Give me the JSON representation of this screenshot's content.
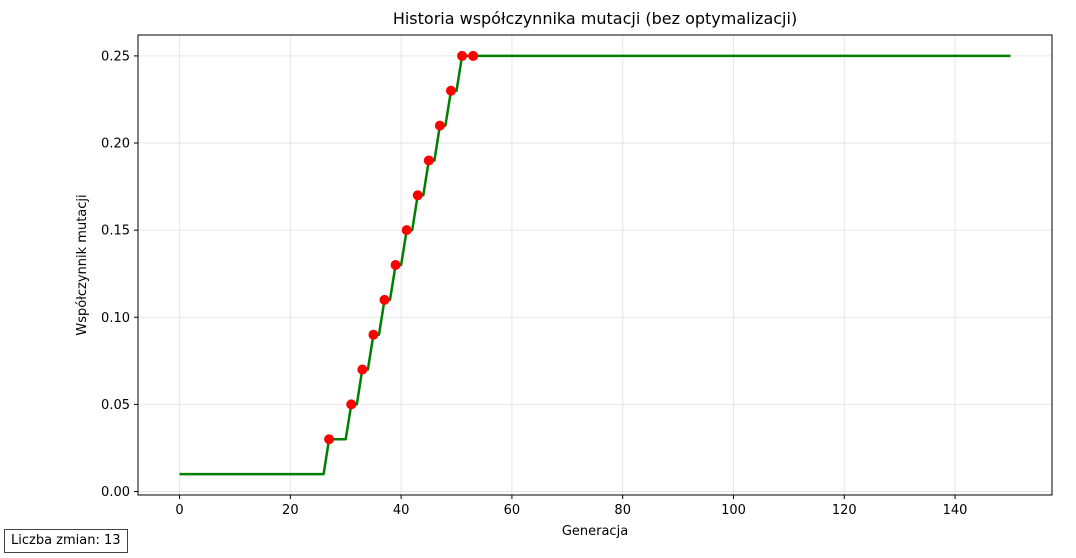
{
  "chart_data": {
    "type": "line",
    "title": "Historia współczynnika mutacji (bez optymalizacji)",
    "xlabel": "Generacja",
    "ylabel": "Współczynnik mutacji",
    "xlim": [
      -7.5,
      157.5
    ],
    "ylim": [
      -0.002,
      0.262
    ],
    "x_ticks": [
      0,
      20,
      40,
      60,
      80,
      100,
      120,
      140
    ],
    "y_ticks": [
      0.0,
      0.05,
      0.1,
      0.15,
      0.2,
      0.25
    ],
    "y_tick_labels": [
      "0.00",
      "0.05",
      "0.10",
      "0.15",
      "0.20",
      "0.25"
    ],
    "grid": true,
    "series": [
      {
        "type": "step-line",
        "color": "#008000",
        "x": [
          0,
          26,
          27,
          30,
          31,
          32,
          33,
          34,
          35,
          36,
          37,
          38,
          39,
          40,
          41,
          42,
          43,
          44,
          45,
          46,
          47,
          48,
          49,
          50,
          51,
          150
        ],
        "y": [
          0.01,
          0.01,
          0.03,
          0.03,
          0.05,
          0.05,
          0.07,
          0.07,
          0.09,
          0.09,
          0.11,
          0.11,
          0.13,
          0.13,
          0.15,
          0.15,
          0.17,
          0.17,
          0.19,
          0.19,
          0.21,
          0.21,
          0.23,
          0.23,
          0.25,
          0.25
        ]
      },
      {
        "type": "scatter",
        "color": "#ff0000",
        "x": [
          27,
          31,
          33,
          35,
          37,
          39,
          41,
          43,
          45,
          47,
          49,
          51,
          53
        ],
        "y": [
          0.03,
          0.05,
          0.07,
          0.09,
          0.11,
          0.13,
          0.15,
          0.17,
          0.19,
          0.21,
          0.23,
          0.25,
          0.25
        ]
      }
    ]
  },
  "annotation": {
    "changes_text": "Liczba zmian: 13"
  }
}
